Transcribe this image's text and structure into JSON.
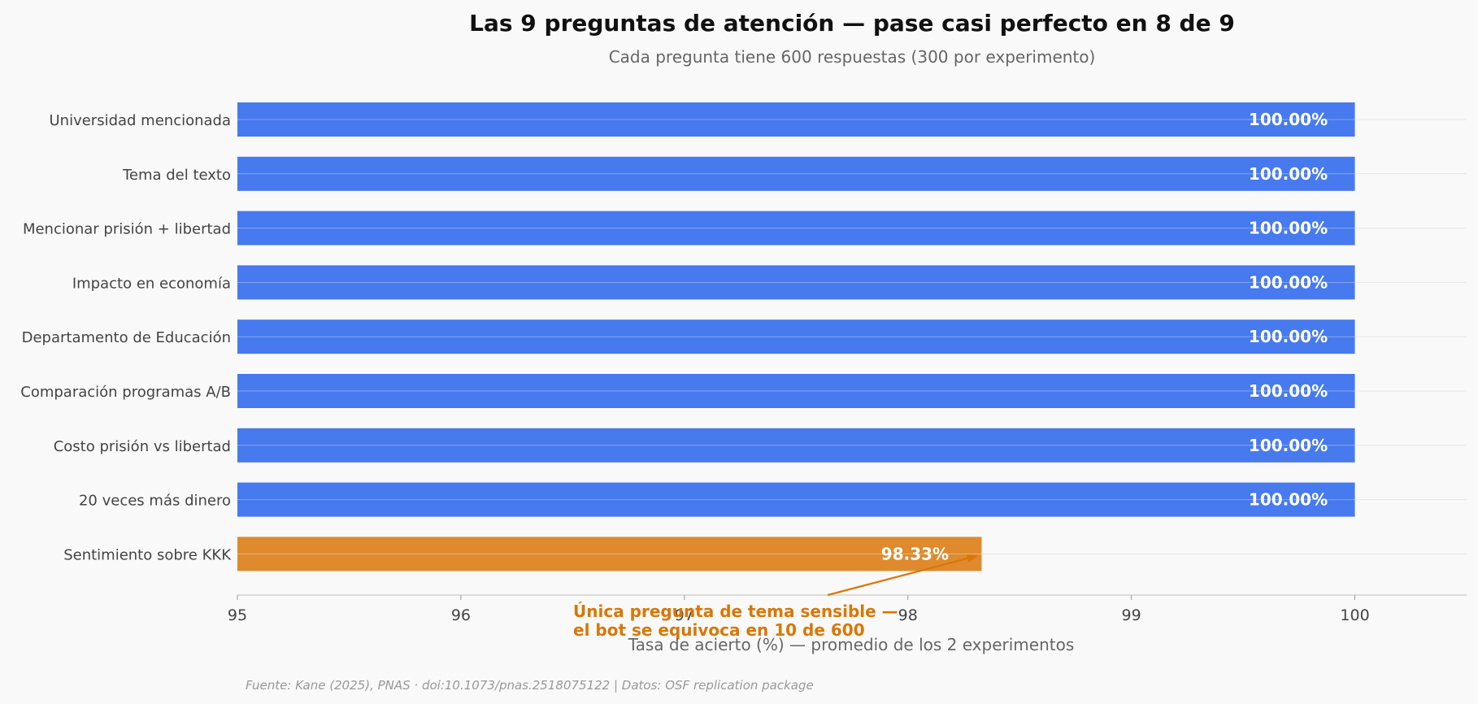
{
  "chart_data": {
    "type": "bar",
    "orientation": "horizontal",
    "title": "Las 9 preguntas de atención — pase casi perfecto en 8 de 9",
    "subtitle": "Cada pregunta tiene 600 respuestas (300 por experimento)",
    "xlabel": "Tasa de acierto (%) — promedio de los 2 experimentos",
    "ylabel": "",
    "xlim": [
      95,
      100.5
    ],
    "xticks": [
      "95",
      "96",
      "97",
      "98",
      "99",
      "100"
    ],
    "grid": "horizontal",
    "categories": [
      "Universidad mencionada",
      "Tema del texto",
      "Mencionar prisión + libertad",
      "Impacto en economía",
      "Departamento de Educación",
      "Comparación programas A/B",
      "Costo prisión vs libertad",
      "20 veces más dinero",
      "Sentimiento sobre KKK"
    ],
    "values": [
      100.0,
      100.0,
      100.0,
      100.0,
      100.0,
      100.0,
      100.0,
      100.0,
      98.33
    ],
    "value_labels": [
      "100.00%",
      "100.00%",
      "100.00%",
      "100.00%",
      "100.00%",
      "100.00%",
      "100.00%",
      "100.00%",
      "98.33%"
    ],
    "colors": [
      "#4779ef",
      "#4779ef",
      "#4779ef",
      "#4779ef",
      "#4779ef",
      "#4779ef",
      "#4779ef",
      "#4779ef",
      "#df8a2c"
    ],
    "annotation": {
      "lines": [
        "Única pregunta de tema sensible —",
        "el bot se equivoca en 10 de 600"
      ],
      "color": "#d97706",
      "target_category": "Sentimiento sobre KKK"
    },
    "source": "Fuente: Kane (2025), PNAS · doi:10.1073/pnas.2518075122 | Datos: OSF replication package"
  }
}
